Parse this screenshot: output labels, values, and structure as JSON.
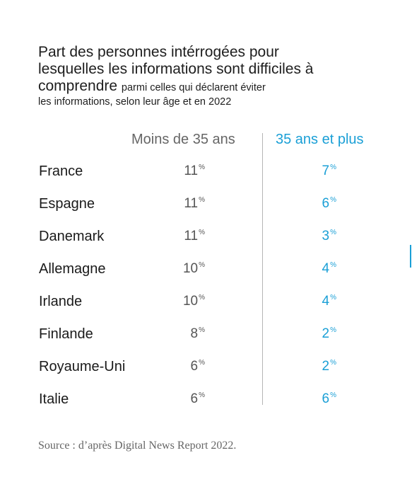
{
  "title_main": "Part des personnes intérrogées pour lesquelles les informations sont difficiles à comprendre",
  "title_sub_inline": "parmi celles qui déclarent éviter",
  "title_sub_line2": "les informations, selon leur âge et en 2022",
  "source": "Source : d’après Digital News Report 2022.",
  "colors": {
    "young": "#555555",
    "old": "#1a9fd6"
  },
  "chart_data": {
    "type": "table",
    "title": "Part des personnes intérrogées pour lesquelles les informations sont difficiles à comprendre parmi celles qui déclarent éviter les informations, selon leur âge et en 2022",
    "unit": "%",
    "columns": [
      "Moins de 35 ans",
      "35 ans et plus"
    ],
    "rows": [
      {
        "country": "France",
        "young": 11,
        "old": 7
      },
      {
        "country": "Espagne",
        "young": 11,
        "old": 6
      },
      {
        "country": "Danemark",
        "young": 11,
        "old": 3
      },
      {
        "country": "Allemagne",
        "young": 10,
        "old": 4
      },
      {
        "country": "Irlande",
        "young": 10,
        "old": 4
      },
      {
        "country": "Finlande",
        "young": 8,
        "old": 2
      },
      {
        "country": "Royaume-Uni",
        "young": 6,
        "old": 2
      },
      {
        "country": "Italie",
        "young": 6,
        "old": 6
      }
    ]
  }
}
